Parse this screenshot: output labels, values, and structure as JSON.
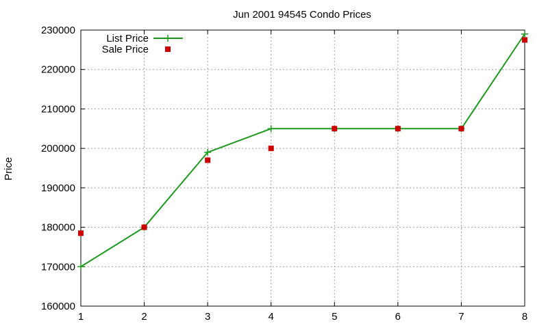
{
  "chart_data": {
    "type": "line",
    "title": "Jun 2001 94545 Condo Prices",
    "xlabel": "",
    "ylabel": "Price",
    "xlim": [
      1,
      8
    ],
    "ylim": [
      160000,
      230000
    ],
    "x_ticks": [
      "1",
      "2",
      "3",
      "4",
      "5",
      "6",
      "7",
      "8"
    ],
    "y_ticks": [
      "160000",
      "170000",
      "180000",
      "190000",
      "200000",
      "210000",
      "220000",
      "230000"
    ],
    "grid": true,
    "legend_position": "top-left",
    "series": [
      {
        "name": "List Price",
        "style": "linespoints",
        "color": "#1a9a1a",
        "x": [
          1,
          2,
          3,
          4,
          5,
          6,
          7,
          8
        ],
        "y": [
          170000,
          180000,
          199000,
          205000,
          205000,
          205000,
          205000,
          229000
        ]
      },
      {
        "name": "Sale Price",
        "style": "points",
        "color": "#cc0000",
        "x": [
          1,
          2,
          3,
          4,
          5,
          6,
          7,
          8
        ],
        "y": [
          178500,
          180000,
          197000,
          200000,
          205000,
          205000,
          205000,
          227500
        ]
      }
    ]
  }
}
